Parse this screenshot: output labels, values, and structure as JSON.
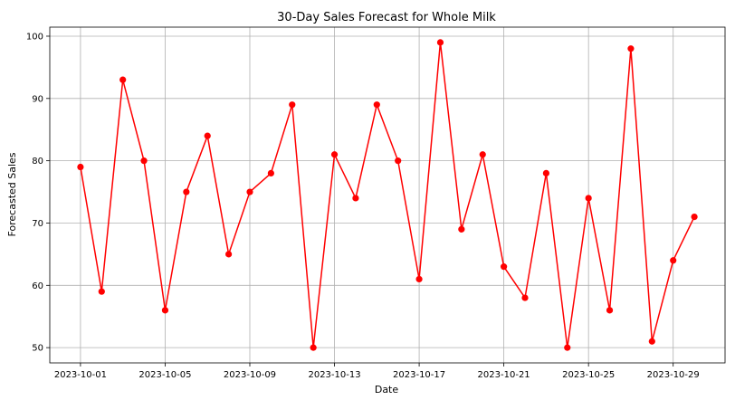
{
  "chart_data": {
    "type": "line",
    "title": "30-Day Sales Forecast for Whole Milk",
    "xlabel": "Date",
    "ylabel": "Forecasted Sales",
    "x": [
      "2023-10-01",
      "2023-10-02",
      "2023-10-03",
      "2023-10-04",
      "2023-10-05",
      "2023-10-06",
      "2023-10-07",
      "2023-10-08",
      "2023-10-09",
      "2023-10-10",
      "2023-10-11",
      "2023-10-12",
      "2023-10-13",
      "2023-10-14",
      "2023-10-15",
      "2023-10-16",
      "2023-10-17",
      "2023-10-18",
      "2023-10-19",
      "2023-10-20",
      "2023-10-21",
      "2023-10-22",
      "2023-10-23",
      "2023-10-24",
      "2023-10-25",
      "2023-10-26",
      "2023-10-27",
      "2023-10-28",
      "2023-10-29",
      "2023-10-30"
    ],
    "series": [
      {
        "values": [
          79,
          59,
          93,
          80,
          56,
          75,
          84,
          65,
          75,
          78,
          89,
          50,
          81,
          74,
          89,
          80,
          61,
          99,
          69,
          81,
          63,
          58,
          78,
          50,
          74,
          56,
          98,
          51,
          64,
          71
        ],
        "color": "#ff0000",
        "marker": "circle"
      }
    ],
    "xticks": [
      "2023-10-01",
      "2023-10-05",
      "2023-10-09",
      "2023-10-13",
      "2023-10-17",
      "2023-10-21",
      "2023-10-25",
      "2023-10-29"
    ],
    "yticks": [
      50,
      60,
      70,
      80,
      90,
      100
    ],
    "ylim": [
      47.55,
      101.45
    ],
    "grid": true
  }
}
